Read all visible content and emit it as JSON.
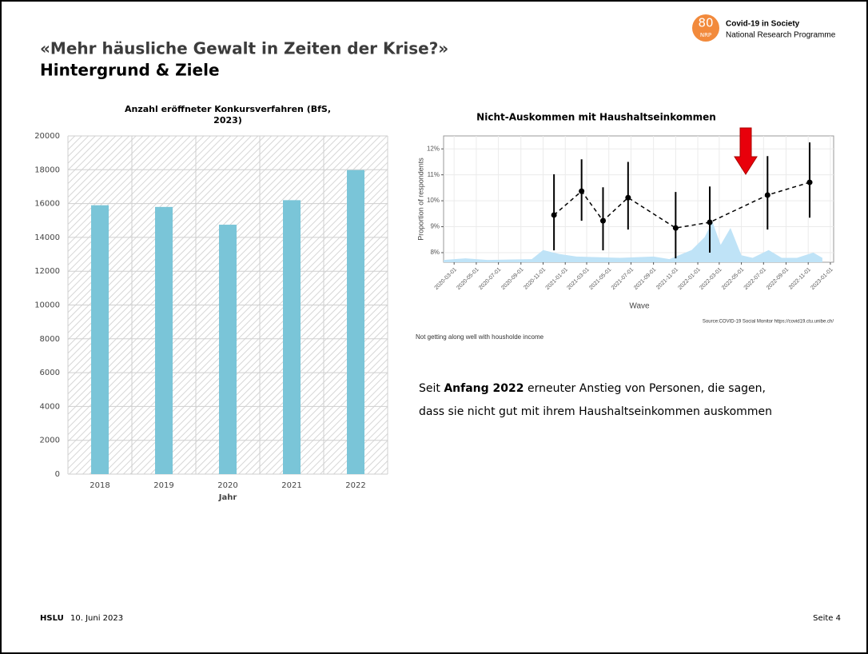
{
  "header": {
    "title": "«Mehr häusliche Gewalt in Zeiten der Krise?»",
    "subtitle": "Hintergrund & Ziele"
  },
  "logo": {
    "number": "80",
    "program": "NRP",
    "name": "Covid-19 in Society",
    "subname": "National Research Programme"
  },
  "chart_data": [
    {
      "type": "bar",
      "title": [
        "Anzahl eröffneter Konkursverfahren (BfS,",
        "2023)"
      ],
      "xlabel": "Jahr",
      "categories": [
        "2018",
        "2019",
        "2020",
        "2021",
        "2022"
      ],
      "values": [
        15900,
        15800,
        14750,
        16200,
        17980
      ],
      "color": "#7ac5d8",
      "ylim": [
        0,
        20000
      ],
      "yticks": [
        0,
        2000,
        4000,
        6000,
        8000,
        10000,
        12000,
        14000,
        16000,
        18000,
        20000
      ],
      "grid": true
    },
    {
      "type": "line",
      "title": "Nicht-Auskommen mit Haushaltseinkommen",
      "xlabel": "Wave",
      "ylabel": "Proportion of respondents",
      "source": "Source:COVID-19 Social Monitor https://covid19.ctu.unibe.ch/",
      "caption": "Not getting along well with housholde income",
      "x": [
        "2020-12-01",
        "2021-02-15",
        "2021-04-15",
        "2021-06-23",
        "2021-11-01",
        "2022-02-03",
        "2022-07-12",
        "2022-11-05"
      ],
      "values": [
        9.45,
        10.37,
        9.23,
        10.12,
        8.95,
        9.17,
        10.22,
        10.71
      ],
      "lower": [
        8.09,
        9.23,
        8.09,
        8.89,
        7.78,
        8.0,
        8.89,
        9.35
      ],
      "upper": [
        11.02,
        11.6,
        10.52,
        11.5,
        10.34,
        10.55,
        11.72,
        12.25
      ],
      "color": "#000000",
      "density": {
        "color": "#bfe3f7",
        "x": [
          "2020-02-01",
          "2020-04-01",
          "2020-06-01",
          "2020-10-01",
          "2020-11-01",
          "2020-12-15",
          "2021-02-01",
          "2021-06-01",
          "2021-09-01",
          "2021-10-15",
          "2021-12-15",
          "2022-01-20",
          "2022-02-10",
          "2022-03-05",
          "2022-04-01",
          "2022-05-01",
          "2022-06-01",
          "2022-07-15",
          "2022-08-20",
          "2022-10-01",
          "2022-11-15",
          "2022-12-10"
        ],
        "values": [
          7.72,
          7.78,
          7.72,
          7.75,
          8.1,
          7.95,
          7.85,
          7.8,
          7.85,
          7.75,
          8.1,
          8.6,
          9.2,
          8.3,
          8.95,
          7.9,
          7.8,
          8.1,
          7.8,
          7.8,
          8.0,
          7.8
        ]
      },
      "xlim": [
        "2020-02-01",
        "2023-01-10"
      ],
      "xticks": [
        "2020-03-01",
        "2020-05-01",
        "2020-07-01",
        "2020-09-01",
        "2020-11-01",
        "2021-01-01",
        "2021-03-01",
        "2021-05-01",
        "2021-07-01",
        "2021-09-01",
        "2021-11-01",
        "2022-01-01",
        "2022-03-01",
        "2022-05-01",
        "2022-07-01",
        "2022-09-01",
        "2022-11-01",
        "2023-01-01"
      ],
      "ylim": [
        7.63,
        12.5
      ],
      "yticks": [
        {
          "value": 8,
          "label": "8%"
        },
        {
          "value": 9,
          "label": "9%"
        },
        {
          "value": 10,
          "label": "10%"
        },
        {
          "value": 11,
          "label": "11%"
        },
        {
          "value": 12,
          "label": "12%"
        }
      ],
      "grid": true
    }
  ],
  "note": [
    "Seit ",
    "Anfang 2022",
    " erneuter Anstieg von Personen, die sagen,",
    "dass sie nicht gut mit ihrem Haushaltseinkommen auskommen"
  ],
  "footer": {
    "brand": "HSLU",
    "date": "10. Juni 2023",
    "page": "Seite 4"
  }
}
